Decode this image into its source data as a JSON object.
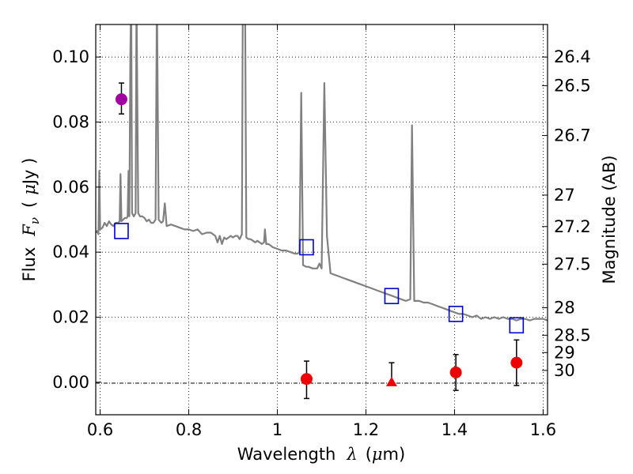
{
  "chart_data": {
    "type": "scatter",
    "xlabel_text": "Wavelength",
    "xlabel_symbol": "λ",
    "xlabel_unit_open": "(",
    "xlabel_unit_mu": "μ",
    "xlabel_unit_rest": "m)",
    "ylabel_text": "Flux",
    "ylabel_symbol": "F",
    "ylabel_symbol_sub": "ν",
    "ylabel_unit_open": "(",
    "ylabel_unit_mu": "μ",
    "ylabel_unit_rest": "Jy )",
    "y2label": "Magnitude (AB)",
    "xlim": [
      0.59,
      1.61
    ],
    "ylim": [
      -0.01,
      0.11
    ],
    "grid": true,
    "x_ticks": [
      {
        "value": 0.6,
        "label": "0.6"
      },
      {
        "value": 0.8,
        "label": "0.8"
      },
      {
        "value": 1.0,
        "label": "1"
      },
      {
        "value": 1.2,
        "label": "1.2"
      },
      {
        "value": 1.4,
        "label": "1.4"
      },
      {
        "value": 1.6,
        "label": "1.6"
      }
    ],
    "y_ticks": [
      {
        "value": 0.0,
        "label": "0.00"
      },
      {
        "value": 0.02,
        "label": "0.02"
      },
      {
        "value": 0.04,
        "label": "0.04"
      },
      {
        "value": 0.06,
        "label": "0.06"
      },
      {
        "value": 0.08,
        "label": "0.08"
      },
      {
        "value": 0.1,
        "label": "0.10"
      }
    ],
    "y2_ticks": [
      {
        "value": 26.4,
        "label": "26.4"
      },
      {
        "value": 26.5,
        "label": "26.5"
      },
      {
        "value": 26.7,
        "label": "26.7"
      },
      {
        "value": 27.0,
        "label": "27"
      },
      {
        "value": 27.2,
        "label": "27.2"
      },
      {
        "value": 27.5,
        "label": "27.5"
      },
      {
        "value": 28.0,
        "label": "28"
      },
      {
        "value": 28.5,
        "label": "28.5"
      },
      {
        "value": 29.0,
        "label": "29"
      },
      {
        "value": 30.0,
        "label": "30"
      }
    ],
    "model_spectrum": {
      "color": "#808080",
      "points": [
        [
          0.59,
          0.046
        ],
        [
          0.593,
          0.0465
        ],
        [
          0.596,
          0.0455
        ],
        [
          0.598,
          0.065
        ],
        [
          0.6,
          0.047
        ],
        [
          0.605,
          0.0475
        ],
        [
          0.61,
          0.049
        ],
        [
          0.615,
          0.048
        ],
        [
          0.62,
          0.0495
        ],
        [
          0.625,
          0.0485
        ],
        [
          0.63,
          0.048
        ],
        [
          0.635,
          0.049
        ],
        [
          0.64,
          0.049
        ],
        [
          0.644,
          0.0495
        ],
        [
          0.646,
          0.064
        ],
        [
          0.648,
          0.0495
        ],
        [
          0.652,
          0.05
        ],
        [
          0.656,
          0.0505
        ],
        [
          0.66,
          0.0505
        ],
        [
          0.662,
          0.051
        ],
        [
          0.664,
          0.065
        ],
        [
          0.666,
          0.051
        ],
        [
          0.668,
          0.1
        ],
        [
          0.67,
          0.12
        ],
        [
          0.672,
          0.052
        ],
        [
          0.676,
          0.051
        ],
        [
          0.68,
          0.052
        ],
        [
          0.682,
          0.12
        ],
        [
          0.686,
          0.052
        ],
        [
          0.69,
          0.051
        ],
        [
          0.695,
          0.051
        ],
        [
          0.7,
          0.0505
        ],
        [
          0.705,
          0.0495
        ],
        [
          0.71,
          0.05
        ],
        [
          0.715,
          0.049
        ],
        [
          0.72,
          0.049
        ],
        [
          0.725,
          0.05
        ],
        [
          0.728,
          0.12
        ],
        [
          0.732,
          0.05
        ],
        [
          0.738,
          0.049
        ],
        [
          0.742,
          0.0495
        ],
        [
          0.746,
          0.055
        ],
        [
          0.75,
          0.048
        ],
        [
          0.76,
          0.0485
        ],
        [
          0.77,
          0.048
        ],
        [
          0.78,
          0.0475
        ],
        [
          0.79,
          0.047
        ],
        [
          0.8,
          0.047
        ],
        [
          0.81,
          0.0465
        ],
        [
          0.82,
          0.047
        ],
        [
          0.83,
          0.0455
        ],
        [
          0.84,
          0.046
        ],
        [
          0.85,
          0.046
        ],
        [
          0.86,
          0.045
        ],
        [
          0.865,
          0.043
        ],
        [
          0.87,
          0.045
        ],
        [
          0.875,
          0.0425
        ],
        [
          0.88,
          0.0445
        ],
        [
          0.885,
          0.044
        ],
        [
          0.89,
          0.0445
        ],
        [
          0.895,
          0.045
        ],
        [
          0.9,
          0.0445
        ],
        [
          0.905,
          0.045
        ],
        [
          0.91,
          0.045
        ],
        [
          0.915,
          0.044
        ],
        [
          0.92,
          0.0455
        ],
        [
          0.922,
          0.12
        ],
        [
          0.927,
          0.12
        ],
        [
          0.93,
          0.0445
        ],
        [
          0.935,
          0.044
        ],
        [
          0.94,
          0.044
        ],
        [
          0.945,
          0.0435
        ],
        [
          0.95,
          0.043
        ],
        [
          0.955,
          0.0435
        ],
        [
          0.96,
          0.043
        ],
        [
          0.965,
          0.0425
        ],
        [
          0.97,
          0.043
        ],
        [
          0.972,
          0.047
        ],
        [
          0.975,
          0.0425
        ],
        [
          0.98,
          0.0425
        ],
        [
          0.985,
          0.042
        ],
        [
          0.99,
          0.0415
        ],
        [
          1.0,
          0.041
        ],
        [
          1.01,
          0.0405
        ],
        [
          1.02,
          0.0405
        ],
        [
          1.03,
          0.04
        ],
        [
          1.04,
          0.0395
        ],
        [
          1.045,
          0.0395
        ],
        [
          1.05,
          0.04
        ],
        [
          1.054,
          0.089
        ],
        [
          1.058,
          0.036
        ],
        [
          1.065,
          0.0355
        ],
        [
          1.07,
          0.0355
        ],
        [
          1.08,
          0.035
        ],
        [
          1.09,
          0.035
        ],
        [
          1.095,
          0.0365
        ],
        [
          1.1,
          0.035
        ],
        [
          1.106,
          0.092
        ],
        [
          1.112,
          0.045
        ],
        [
          1.12,
          0.0335
        ],
        [
          1.13,
          0.033
        ],
        [
          1.14,
          0.0325
        ],
        [
          1.15,
          0.032
        ],
        [
          1.16,
          0.0315
        ],
        [
          1.17,
          0.031
        ],
        [
          1.18,
          0.0305
        ],
        [
          1.19,
          0.03
        ],
        [
          1.2,
          0.0295
        ],
        [
          1.21,
          0.029
        ],
        [
          1.22,
          0.0285
        ],
        [
          1.23,
          0.028
        ],
        [
          1.24,
          0.0275
        ],
        [
          1.25,
          0.027
        ],
        [
          1.26,
          0.0265
        ],
        [
          1.27,
          0.026
        ],
        [
          1.28,
          0.0255
        ],
        [
          1.29,
          0.025
        ],
        [
          1.3,
          0.0255
        ],
        [
          1.304,
          0.079
        ],
        [
          1.309,
          0.025
        ],
        [
          1.32,
          0.025
        ],
        [
          1.33,
          0.0245
        ],
        [
          1.34,
          0.0245
        ],
        [
          1.35,
          0.024
        ],
        [
          1.36,
          0.0235
        ],
        [
          1.37,
          0.023
        ],
        [
          1.38,
          0.0225
        ],
        [
          1.39,
          0.022
        ],
        [
          1.4,
          0.0215
        ],
        [
          1.41,
          0.021
        ],
        [
          1.42,
          0.021
        ],
        [
          1.43,
          0.0205
        ],
        [
          1.44,
          0.02
        ],
        [
          1.45,
          0.0205
        ],
        [
          1.46,
          0.0195
        ],
        [
          1.47,
          0.02
        ],
        [
          1.48,
          0.0195
        ],
        [
          1.49,
          0.02
        ],
        [
          1.5,
          0.0195
        ],
        [
          1.51,
          0.02
        ],
        [
          1.52,
          0.0195
        ],
        [
          1.53,
          0.0195
        ],
        [
          1.54,
          0.019
        ],
        [
          1.55,
          0.0195
        ],
        [
          1.56,
          0.0195
        ],
        [
          1.57,
          0.019
        ],
        [
          1.58,
          0.0195
        ],
        [
          1.59,
          0.0195
        ],
        [
          1.6,
          0.0195
        ],
        [
          1.61,
          0.019
        ]
      ]
    },
    "model_photometry": {
      "color": "#0000cc",
      "points": [
        {
          "x": 0.648,
          "y": 0.0465
        },
        {
          "x": 1.066,
          "y": 0.0415
        },
        {
          "x": 1.258,
          "y": 0.0265
        },
        {
          "x": 1.403,
          "y": 0.021
        },
        {
          "x": 1.54,
          "y": 0.0175
        }
      ]
    },
    "optical_detection": {
      "color": "#a000a0",
      "points": [
        {
          "x": 0.648,
          "y": 0.087,
          "yerr_low": 0.0045,
          "yerr_high": 0.005
        }
      ]
    },
    "nir_photometry": {
      "color": "#ee0000",
      "points": [
        {
          "x": 1.066,
          "y": 0.001,
          "yerr_low": 0.006,
          "yerr_high": 0.0055,
          "marker": "circle"
        },
        {
          "x": 1.258,
          "y": 0.0,
          "yerr_low": 0.0,
          "yerr_high": 0.006,
          "marker": "triangle"
        },
        {
          "x": 1.403,
          "y": 0.003,
          "yerr_low": 0.0055,
          "yerr_high": 0.0055,
          "marker": "circle"
        },
        {
          "x": 1.54,
          "y": 0.006,
          "yerr_low": 0.007,
          "yerr_high": 0.007,
          "marker": "circle"
        }
      ]
    }
  }
}
